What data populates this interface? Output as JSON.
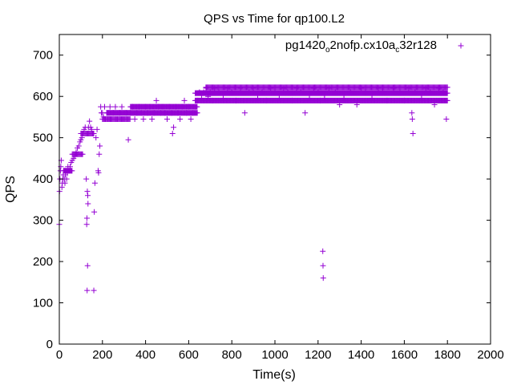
{
  "chart_data": {
    "type": "scatter",
    "title": "QPS vs Time for qp100.L2",
    "xlabel": "Time(s)",
    "ylabel": "QPS",
    "xlim": [
      0,
      2000
    ],
    "ylim": [
      0,
      750
    ],
    "xticks": [
      0,
      200,
      400,
      600,
      800,
      1000,
      1200,
      1400,
      1600,
      1800,
      2000
    ],
    "yticks": [
      0,
      100,
      200,
      300,
      400,
      500,
      600,
      700
    ],
    "grid": false,
    "legend_position": "top-right",
    "legend": {
      "parts": [
        "pg1420",
        "o",
        "2nofp.cx10a",
        "c",
        "32r128"
      ],
      "text": "pg1420o2nofp.cx10ac32r128",
      "marker": "+"
    },
    "series": [
      {
        "name": "pg1420o2nofp.cx10ac32r128",
        "color": "#9400d3",
        "marker": "+",
        "points": [
          [
            0,
            290
          ],
          [
            1,
            370
          ],
          [
            3,
            400
          ],
          [
            5,
            420
          ],
          [
            7,
            430
          ],
          [
            9,
            445
          ],
          [
            12,
            380
          ],
          [
            14,
            390
          ],
          [
            16,
            400
          ],
          [
            18,
            410
          ],
          [
            20,
            420
          ],
          [
            23,
            400
          ],
          [
            26,
            390
          ],
          [
            28,
            410
          ],
          [
            31,
            420
          ],
          [
            34,
            400
          ],
          [
            37,
            415
          ],
          [
            40,
            430
          ],
          [
            45,
            420
          ],
          [
            50,
            430
          ],
          [
            55,
            440
          ],
          [
            60,
            445
          ],
          [
            66,
            450
          ],
          [
            72,
            455
          ],
          [
            78,
            465
          ],
          [
            84,
            475
          ],
          [
            90,
            480
          ],
          [
            96,
            490
          ],
          [
            100,
            495
          ],
          [
            105,
            500
          ],
          [
            110,
            510
          ],
          [
            115,
            520
          ],
          [
            120,
            525
          ],
          [
            125,
            400
          ],
          [
            127,
            290
          ],
          [
            128,
            305
          ],
          [
            129,
            130
          ],
          [
            130,
            370
          ],
          [
            131,
            190
          ],
          [
            132,
            360
          ],
          [
            133,
            340
          ],
          [
            135,
            525
          ],
          [
            140,
            540
          ],
          [
            145,
            525
          ],
          [
            150,
            520
          ],
          [
            155,
            510
          ],
          [
            160,
            130
          ],
          [
            162,
            320
          ],
          [
            165,
            390
          ],
          [
            170,
            500
          ],
          [
            175,
            520
          ],
          [
            180,
            420
          ],
          [
            182,
            415
          ],
          [
            185,
            460
          ],
          [
            188,
            480
          ],
          [
            192,
            575
          ],
          [
            195,
            560
          ],
          [
            200,
            560
          ],
          [
            205,
            550
          ],
          [
            210,
            575
          ],
          [
            215,
            545
          ],
          [
            220,
            560
          ],
          [
            225,
            545
          ],
          [
            230,
            560
          ],
          [
            235,
            575
          ],
          [
            240,
            545
          ],
          [
            250,
            560
          ],
          [
            260,
            575
          ],
          [
            270,
            545
          ],
          [
            280,
            560
          ],
          [
            290,
            575
          ],
          [
            300,
            545
          ],
          [
            310,
            560
          ],
          [
            320,
            495
          ],
          [
            330,
            560
          ],
          [
            340,
            575
          ],
          [
            350,
            545
          ],
          [
            360,
            560
          ],
          [
            370,
            575
          ],
          [
            380,
            560
          ],
          [
            390,
            545
          ],
          [
            400,
            575
          ],
          [
            410,
            560
          ],
          [
            420,
            575
          ],
          [
            430,
            545
          ],
          [
            440,
            560
          ],
          [
            450,
            590
          ],
          [
            460,
            575
          ],
          [
            470,
            560
          ],
          [
            480,
            575
          ],
          [
            490,
            560
          ],
          [
            500,
            545
          ],
          [
            510,
            575
          ],
          [
            520,
            560
          ],
          [
            525,
            510
          ],
          [
            530,
            525
          ],
          [
            540,
            575
          ],
          [
            550,
            560
          ],
          [
            560,
            545
          ],
          [
            570,
            575
          ],
          [
            580,
            590
          ],
          [
            590,
            560
          ],
          [
            600,
            575
          ],
          [
            610,
            545
          ],
          [
            620,
            560
          ],
          [
            630,
            575
          ],
          [
            640,
            590
          ],
          [
            650,
            610
          ],
          [
            660,
            595
          ],
          [
            670,
            610
          ],
          [
            680,
            620
          ],
          [
            690,
            600
          ],
          [
            700,
            610
          ],
          [
            710,
            590
          ],
          [
            720,
            620
          ],
          [
            740,
            610
          ],
          [
            760,
            595
          ],
          [
            780,
            620
          ],
          [
            800,
            610
          ],
          [
            820,
            590
          ],
          [
            840,
            620
          ],
          [
            860,
            560
          ],
          [
            880,
            610
          ],
          [
            900,
            620
          ],
          [
            920,
            595
          ],
          [
            940,
            610
          ],
          [
            960,
            590
          ],
          [
            980,
            620
          ],
          [
            1000,
            610
          ],
          [
            1020,
            595
          ],
          [
            1040,
            620
          ],
          [
            1060,
            610
          ],
          [
            1080,
            590
          ],
          [
            1100,
            620
          ],
          [
            1120,
            610
          ],
          [
            1140,
            560
          ],
          [
            1160,
            595
          ],
          [
            1180,
            620
          ],
          [
            1200,
            610
          ],
          [
            1210,
            590
          ],
          [
            1222,
            225
          ],
          [
            1223,
            190
          ],
          [
            1224,
            160
          ],
          [
            1230,
            595
          ],
          [
            1250,
            620
          ],
          [
            1280,
            610
          ],
          [
            1300,
            580
          ],
          [
            1320,
            595
          ],
          [
            1350,
            610
          ],
          [
            1380,
            580
          ],
          [
            1400,
            620
          ],
          [
            1420,
            610
          ],
          [
            1450,
            595
          ],
          [
            1480,
            620
          ],
          [
            1500,
            610
          ],
          [
            1520,
            590
          ],
          [
            1550,
            620
          ],
          [
            1580,
            610
          ],
          [
            1600,
            590
          ],
          [
            1620,
            620
          ],
          [
            1635,
            560
          ],
          [
            1637,
            545
          ],
          [
            1640,
            510
          ],
          [
            1650,
            610
          ],
          [
            1680,
            595
          ],
          [
            1700,
            620
          ],
          [
            1720,
            610
          ],
          [
            1740,
            580
          ],
          [
            1760,
            620
          ],
          [
            1780,
            610
          ],
          [
            1795,
            545
          ]
        ],
        "bands": [
          {
            "x0": 20,
            "x1": 60,
            "y": 420,
            "step": 3
          },
          {
            "x0": 60,
            "x1": 110,
            "y": 460,
            "step": 4
          },
          {
            "x0": 100,
            "x1": 160,
            "y": 510,
            "step": 4
          },
          {
            "x0": 200,
            "x1": 330,
            "y": 545,
            "step": 4
          },
          {
            "x0": 220,
            "x1": 640,
            "y": 560,
            "step": 3
          },
          {
            "x0": 330,
            "x1": 640,
            "y": 575,
            "step": 3
          },
          {
            "x0": 630,
            "x1": 1800,
            "y": 590,
            "step": 3
          },
          {
            "x0": 630,
            "x1": 1800,
            "y": 608,
            "step": 2.5
          },
          {
            "x0": 680,
            "x1": 1800,
            "y": 622,
            "step": 4
          }
        ]
      }
    ]
  }
}
